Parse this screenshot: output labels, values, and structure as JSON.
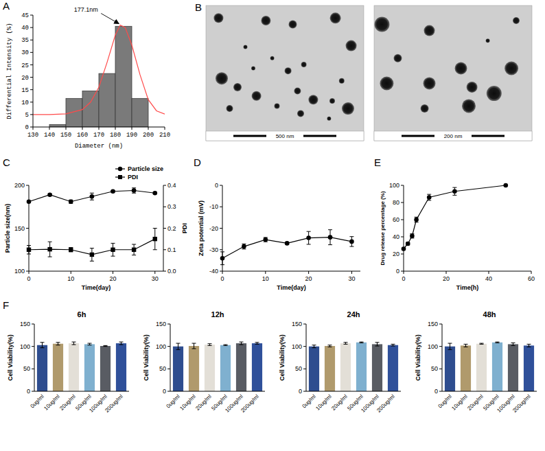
{
  "chart_data": [
    {
      "panel_label": "A",
      "type": "histogram",
      "bins": [
        140,
        150,
        160,
        170,
        180,
        190,
        200
      ],
      "values": [
        1,
        11.5,
        14.5,
        21.5,
        40.5,
        11.5
      ],
      "color": "#7a7a7a",
      "fit_curve": {
        "x": [
          130,
          140,
          150,
          160,
          165,
          170,
          175,
          180,
          183,
          186,
          190,
          195,
          200,
          205,
          210
        ],
        "values": [
          5,
          5,
          5.3,
          7,
          10,
          16,
          26,
          37,
          41,
          40,
          33,
          21,
          11,
          6.5,
          5.2
        ],
        "color": "#ff4a4a"
      },
      "annotation": {
        "text": "177.1nm",
        "x": 183,
        "y": 41
      },
      "xlim": [
        130,
        210
      ],
      "xticks": [
        130,
        140,
        150,
        160,
        170,
        180,
        190,
        200,
        210
      ],
      "ylim": [
        0,
        45
      ],
      "yticks": [
        0,
        5,
        10,
        15,
        20,
        25,
        30,
        35,
        40,
        45
      ],
      "x_label": "Diameter (nm)",
      "y_label": "Differential Intensity (%)"
    },
    {
      "panel_label": "B",
      "type": "image",
      "images": [
        {
          "scale_bar": "500 nm"
        },
        {
          "scale_bar": "200 nm"
        }
      ]
    },
    {
      "panel_label": "C",
      "type": "line",
      "x": [
        0,
        5,
        10,
        15,
        20,
        25,
        30
      ],
      "series": [
        {
          "name": "Particle size",
          "color": "#000000",
          "marker": "circle",
          "values": [
            181,
            189,
            181,
            187,
            193,
            194,
            191
          ],
          "errors": [
            1,
            1,
            2,
            4,
            1,
            3,
            1
          ]
        },
        {
          "name": "PDI",
          "color": "#000000",
          "marker": "square",
          "axis": "y2",
          "values": [
            0.1,
            0.102,
            0.1,
            0.077,
            0.1,
            0.1,
            0.15
          ],
          "errors": [
            0.02,
            0.035,
            0.01,
            0.03,
            0.03,
            0.025,
            0.05
          ]
        }
      ],
      "xlim": [
        0,
        32
      ],
      "xticks": [
        0,
        10,
        20,
        30
      ],
      "ylim": [
        100,
        200
      ],
      "yticks": [
        100,
        150,
        200
      ],
      "y2lim": [
        0,
        0.4
      ],
      "y2ticks": [
        {
          "value": 0,
          "label": "0.0"
        },
        0.1,
        0.2,
        0.3,
        0.4
      ],
      "x_label": "Time(day)",
      "y_label": "Particle size(nm)",
      "y2_label": "PDI",
      "legend": "top-right"
    },
    {
      "panel_label": "D",
      "type": "line",
      "x": [
        0,
        5,
        10,
        15,
        20,
        25,
        30
      ],
      "values": [
        -34,
        -28.5,
        -25.3,
        -27,
        -24.5,
        -24.2,
        -26.2
      ],
      "errors": [
        3,
        1.2,
        1,
        0.5,
        3,
        3.5,
        2.3
      ],
      "color": "#000000",
      "marker": "circle",
      "xlim": [
        0,
        32
      ],
      "xticks": [
        0,
        10,
        20,
        30
      ],
      "ylim": [
        -40,
        0
      ],
      "yticks": [
        -40,
        -30,
        -20,
        -10,
        0
      ],
      "x_label": "Time(day)",
      "y_label": "Zeta potential (mV)"
    },
    {
      "panel_label": "E",
      "type": "line",
      "x": [
        0,
        2,
        4,
        6,
        12,
        24,
        48
      ],
      "values": [
        26,
        32,
        41,
        60,
        86,
        93,
        100
      ],
      "errors": [
        1,
        1.5,
        2.5,
        3,
        3.5,
        4.5,
        0
      ],
      "color": "#000000",
      "marker": "circle",
      "xlim": [
        0,
        60
      ],
      "xticks": [
        0,
        20,
        40,
        60
      ],
      "ylim": [
        0,
        100
      ],
      "yticks": [
        0,
        20,
        40,
        60,
        80,
        100
      ],
      "x_label": "Time(h)",
      "y_label": "Drug release percentage (%)"
    },
    {
      "panel_label": "F",
      "type": "bar",
      "title": "6h",
      "categories": [
        "0ug/ml",
        "10ug/ml",
        "20ug/ml",
        "50ug/ml",
        "100ug/ml",
        "200ug/ml"
      ],
      "values": [
        103,
        106,
        107,
        105,
        101,
        107
      ],
      "errors": [
        6,
        3,
        3,
        2,
        1,
        3
      ],
      "colors": [
        "#2e4d8f",
        "#b09a6c",
        "#e3dfd7",
        "#7fb0cf",
        "#595c63",
        "#2f509a"
      ],
      "ylim": [
        0,
        150
      ],
      "yticks": [
        0,
        50,
        100,
        150
      ],
      "y_label": "Cell Viability(%)"
    },
    {
      "type": "bar",
      "title": "12h",
      "categories": [
        "0ug/ml",
        "10ug/ml",
        "20ug/ml",
        "50ug/ml",
        "100ug/ml",
        "200ug/ml"
      ],
      "values": [
        100,
        101,
        104,
        103,
        107,
        107
      ],
      "errors": [
        7,
        6,
        2,
        1,
        3,
        2
      ],
      "colors": [
        "#2e4d8f",
        "#b09a6c",
        "#e3dfd7",
        "#7fb0cf",
        "#595c63",
        "#2f509a"
      ],
      "ylim": [
        0,
        150
      ],
      "yticks": [
        0,
        50,
        100,
        150
      ],
      "y_label": "Cell Viability(%)"
    },
    {
      "type": "bar",
      "title": "24h",
      "categories": [
        "0ug/ml",
        "10ug/ml",
        "20ug/ml",
        "50ug/ml",
        "100ug/ml",
        "200ug/ml"
      ],
      "values": [
        100,
        101,
        107,
        109,
        105,
        103
      ],
      "errors": [
        3,
        2,
        2,
        1,
        4,
        2
      ],
      "colors": [
        "#2e4d8f",
        "#b09a6c",
        "#e3dfd7",
        "#7fb0cf",
        "#595c63",
        "#2f509a"
      ],
      "ylim": [
        0,
        150
      ],
      "yticks": [
        0,
        50,
        100,
        150
      ],
      "y_label": "Cell Viability(%)"
    },
    {
      "type": "bar",
      "title": "48h",
      "categories": [
        "0ug/ml",
        "10ug/ml",
        "20ug/ml",
        "50ug/ml",
        "100ug/ml",
        "200ug/ml"
      ],
      "values": [
        100,
        102,
        106,
        109,
        105,
        102
      ],
      "errors": [
        7,
        3,
        1,
        1,
        3,
        3
      ],
      "colors": [
        "#2e4d8f",
        "#b09a6c",
        "#e3dfd7",
        "#7fb0cf",
        "#595c63",
        "#2f509a"
      ],
      "ylim": [
        0,
        150
      ],
      "yticks": [
        0,
        50,
        100,
        150
      ],
      "y_label": "Cell Viability(%)"
    }
  ]
}
